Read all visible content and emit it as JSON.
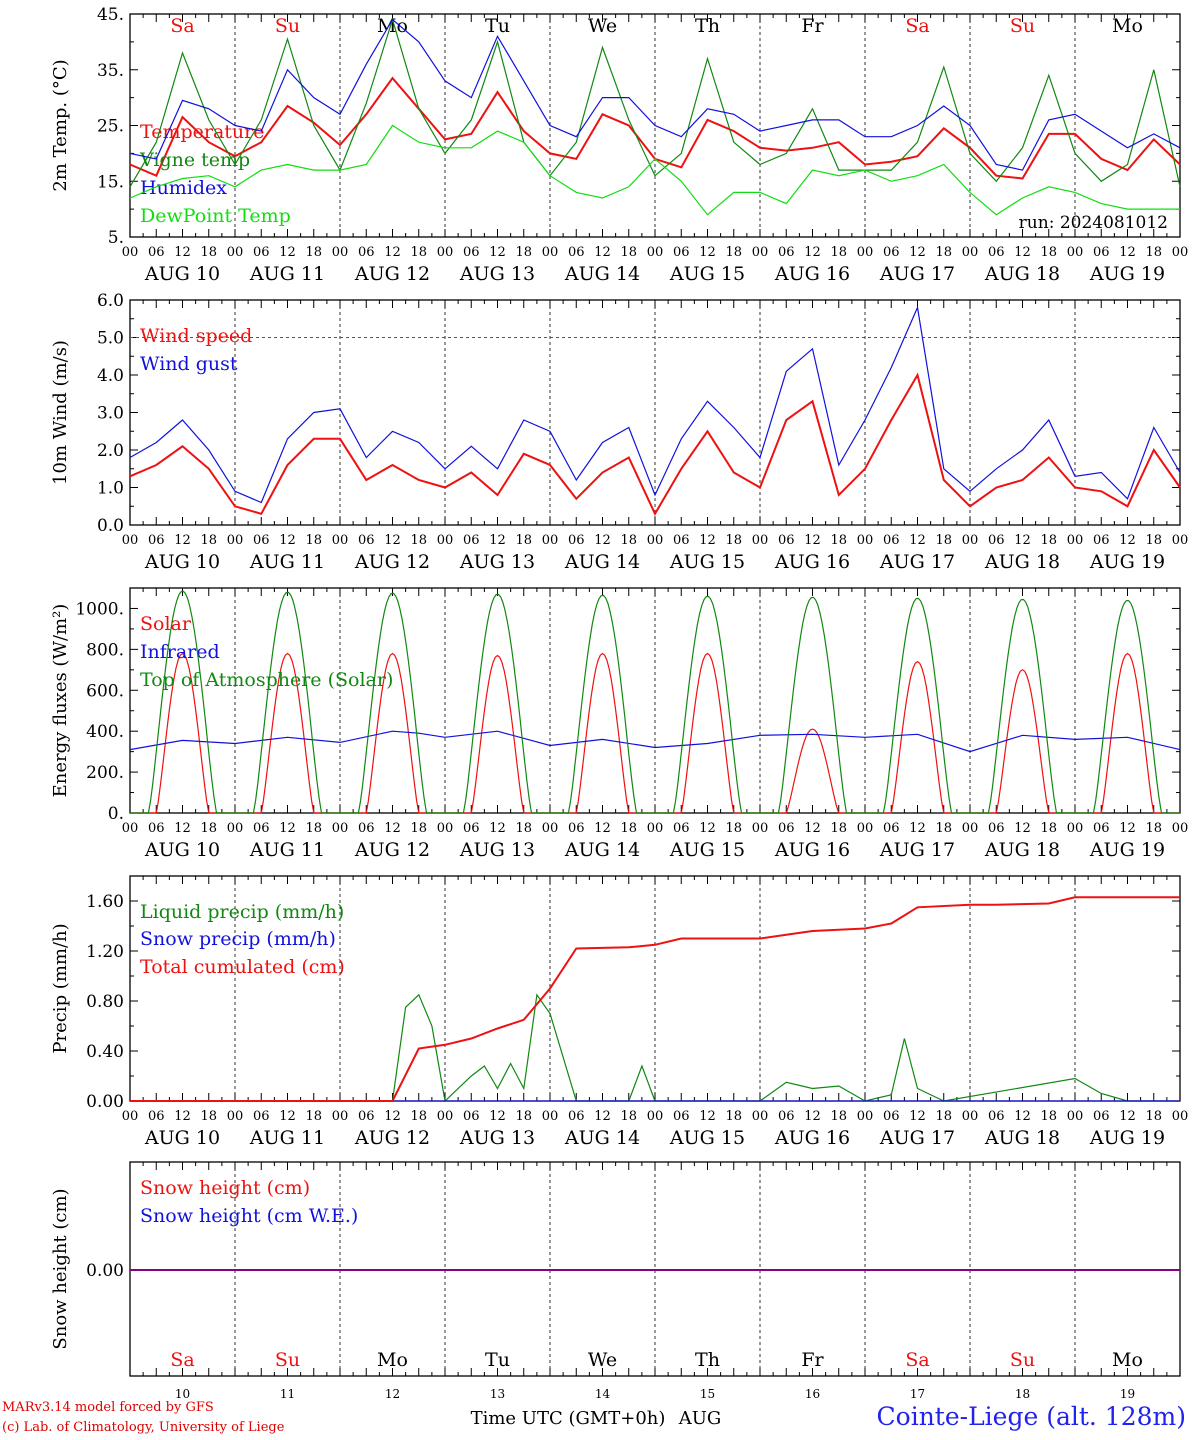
{
  "footer": {
    "credit_model": "MARv3.14 model forced by GFS",
    "credit_lab": "(c) Lab. of Climatology, University of Liege",
    "station": "Cointe-Liege (alt. 128m)",
    "time_label": "Time UTC (GMT+0h)",
    "month_label": "AUG"
  },
  "days": {
    "weekday_labels": [
      "Sa",
      "Su",
      "Mo",
      "Tu",
      "We",
      "Th",
      "Fr",
      "Sa",
      "Su",
      "Mo"
    ],
    "weekend_flags": [
      true,
      true,
      false,
      false,
      false,
      false,
      false,
      true,
      true,
      false
    ],
    "date_labels": [
      "AUG 10",
      "AUG 11",
      "AUG 12",
      "AUG 13",
      "AUG 14",
      "AUG 15",
      "AUG 16",
      "AUG 17",
      "AUG 18",
      "AUG 19"
    ],
    "day_numbers": [
      "10",
      "11",
      "12",
      "13",
      "14",
      "15",
      "16",
      "17",
      "18",
      "19"
    ],
    "hour_ticks": [
      "00",
      "06",
      "12",
      "18"
    ],
    "last_tick": "00"
  },
  "colors": {
    "red": "#ee1111",
    "green": "#118811",
    "blue": "#1111dd",
    "light_green": "#11dd11",
    "purple": "#880088"
  },
  "chart_data": [
    {
      "type": "line",
      "panel": "temperature",
      "ylabel": "2m Temp. (°C)",
      "ylim": [
        5,
        45
      ],
      "yticks": [
        "5.",
        "15.",
        "25.",
        "35.",
        "45."
      ],
      "annotation": "run: 2024081012",
      "x_unit": "hours since AUG 10 00 UTC",
      "series": [
        {
          "name": "Temperature",
          "color": "red",
          "x": [
            0,
            6,
            12,
            18,
            24,
            30,
            36,
            42,
            48,
            54,
            60,
            66,
            72,
            78,
            84,
            90,
            96,
            102,
            108,
            114,
            120,
            126,
            132,
            138,
            144,
            150,
            156,
            162,
            168,
            174,
            180,
            186,
            192,
            198,
            204,
            210,
            216,
            222,
            228,
            234,
            240
          ],
          "y": [
            18,
            16,
            26.5,
            22,
            19.5,
            22,
            28.5,
            25.5,
            21.5,
            27,
            33.5,
            28,
            22.5,
            23.5,
            31,
            24,
            20,
            19,
            27,
            25,
            19,
            17.5,
            26,
            24,
            21,
            20.5,
            21,
            22,
            18,
            18.5,
            19.5,
            24.5,
            21,
            16,
            15.5,
            23.5,
            23.5,
            19,
            17,
            22.5,
            18
          ]
        },
        {
          "name": "Vigne temp",
          "color": "green",
          "x": [
            0,
            6,
            12,
            18,
            24,
            30,
            36,
            42,
            48,
            54,
            60,
            66,
            72,
            78,
            84,
            90,
            96,
            102,
            108,
            114,
            120,
            126,
            132,
            138,
            144,
            150,
            156,
            162,
            168,
            174,
            180,
            186,
            192,
            198,
            204,
            210,
            216,
            222,
            228,
            234,
            240
          ],
          "y": [
            14,
            22,
            38,
            26,
            18,
            26,
            40.5,
            25,
            17,
            29,
            44,
            28,
            20,
            26,
            40,
            22,
            16,
            22,
            39,
            26,
            16,
            20,
            37,
            22,
            18,
            20,
            28,
            17,
            17,
            17,
            22,
            35.5,
            20,
            15,
            21,
            34,
            20,
            15,
            18,
            35,
            14
          ]
        },
        {
          "name": "Humidex",
          "color": "blue",
          "x": [
            0,
            6,
            12,
            18,
            24,
            30,
            36,
            42,
            48,
            54,
            60,
            66,
            72,
            78,
            84,
            90,
            96,
            102,
            108,
            114,
            120,
            126,
            132,
            138,
            144,
            150,
            156,
            162,
            168,
            174,
            180,
            186,
            192,
            198,
            204,
            210,
            216,
            222,
            228,
            234,
            240
          ],
          "y": [
            20,
            19,
            29.5,
            28,
            25,
            24,
            35,
            30,
            27,
            36,
            44,
            40,
            33,
            30,
            41,
            33,
            25,
            23,
            30,
            30,
            25,
            23,
            28,
            27,
            24,
            25,
            26,
            26,
            23,
            23,
            25,
            28.5,
            25,
            18,
            17,
            26,
            27,
            24,
            21,
            23.5,
            21
          ]
        },
        {
          "name": "DewPoint Temp",
          "color": "light_green",
          "x": [
            0,
            6,
            12,
            18,
            24,
            30,
            36,
            42,
            48,
            54,
            60,
            66,
            72,
            78,
            84,
            90,
            96,
            102,
            108,
            114,
            120,
            126,
            132,
            138,
            144,
            150,
            156,
            162,
            168,
            174,
            180,
            186,
            192,
            198,
            204,
            210,
            216,
            222,
            228,
            234,
            240
          ],
          "y": [
            12,
            14,
            15.5,
            16,
            14,
            17,
            18,
            17,
            17,
            18,
            25,
            22,
            21,
            21,
            24,
            22,
            16,
            13,
            12,
            14,
            19,
            15,
            9,
            13,
            13,
            11,
            17,
            16,
            17,
            15,
            16,
            18,
            13,
            9,
            12,
            14,
            13,
            11,
            10,
            10,
            10
          ]
        }
      ]
    },
    {
      "type": "line",
      "panel": "wind",
      "ylabel": "10m Wind (m/s)",
      "ylim": [
        0,
        6
      ],
      "yticks": [
        "0.0",
        "1.0",
        "2.0",
        "3.0",
        "4.0",
        "5.0",
        "6.0"
      ],
      "x_unit": "hours since AUG 10 00 UTC",
      "series": [
        {
          "name": "Wind speed",
          "color": "red",
          "x": [
            0,
            6,
            12,
            18,
            24,
            30,
            36,
            42,
            48,
            54,
            60,
            66,
            72,
            78,
            84,
            90,
            96,
            102,
            108,
            114,
            120,
            126,
            132,
            138,
            144,
            150,
            156,
            162,
            168,
            174,
            180,
            186,
            192,
            198,
            204,
            210,
            216,
            222,
            228,
            234,
            240
          ],
          "y": [
            1.3,
            1.6,
            2.1,
            1.5,
            0.5,
            0.3,
            1.6,
            2.3,
            2.3,
            1.2,
            1.6,
            1.2,
            1.0,
            1.4,
            0.8,
            1.9,
            1.6,
            0.7,
            1.4,
            1.8,
            0.3,
            1.5,
            2.5,
            1.4,
            1.0,
            2.8,
            3.3,
            0.8,
            1.5,
            2.8,
            4.0,
            1.2,
            0.5,
            1.0,
            1.2,
            1.8,
            1.0,
            0.9,
            0.5,
            2.0,
            1.0
          ]
        },
        {
          "name": "Wind gust",
          "color": "blue",
          "x": [
            0,
            6,
            12,
            18,
            24,
            30,
            36,
            42,
            48,
            54,
            60,
            66,
            72,
            78,
            84,
            90,
            96,
            102,
            108,
            114,
            120,
            126,
            132,
            138,
            144,
            150,
            156,
            162,
            168,
            174,
            180,
            186,
            192,
            198,
            204,
            210,
            216,
            222,
            228,
            234,
            240
          ],
          "y": [
            1.8,
            2.2,
            2.8,
            2.0,
            0.9,
            0.6,
            2.3,
            3.0,
            3.1,
            1.8,
            2.5,
            2.2,
            1.5,
            2.1,
            1.5,
            2.8,
            2.5,
            1.2,
            2.2,
            2.6,
            0.8,
            2.3,
            3.3,
            2.6,
            1.8,
            4.1,
            4.7,
            1.6,
            2.8,
            4.2,
            5.8,
            1.5,
            0.9,
            1.5,
            2.0,
            2.8,
            1.3,
            1.4,
            0.7,
            2.6,
            1.4
          ]
        }
      ]
    },
    {
      "type": "line",
      "panel": "energy",
      "ylabel": "Energy fluxes (W/m²)",
      "ylim": [
        0,
        1100
      ],
      "yticks": [
        "0.",
        "200.",
        "400.",
        "600.",
        "800.",
        "1000."
      ],
      "x_unit": "hours since AUG 10 00 UTC",
      "series": [
        {
          "name": "Solar",
          "color": "red",
          "daily_peak": [
            780,
            780,
            780,
            770,
            780,
            780,
            410,
            740,
            700,
            780
          ]
        },
        {
          "name": "Infrared",
          "color": "blue",
          "x": [
            0,
            12,
            24,
            36,
            48,
            60,
            66,
            72,
            84,
            96,
            108,
            120,
            132,
            144,
            156,
            168,
            180,
            192,
            204,
            216,
            228,
            240
          ],
          "y": [
            310,
            355,
            340,
            370,
            345,
            400,
            390,
            370,
            400,
            330,
            360,
            320,
            340,
            380,
            385,
            370,
            385,
            300,
            380,
            360,
            370,
            310
          ]
        },
        {
          "name": "Top of Atmosphere (Solar)",
          "color": "green",
          "daily_peak": [
            1085,
            1080,
            1075,
            1070,
            1065,
            1060,
            1055,
            1050,
            1045,
            1040
          ]
        }
      ]
    },
    {
      "type": "line",
      "panel": "precip",
      "ylabel": "Precip (mm/h)",
      "ylim": [
        0,
        1.8
      ],
      "yticks": [
        "0.00",
        "0.40",
        "0.80",
        "1.20",
        "1.60"
      ],
      "x_unit": "hours since AUG 10 00 UTC",
      "series": [
        {
          "name": "Liquid precip (mm/h)",
          "color": "green",
          "x": [
            0,
            60,
            63,
            66,
            69,
            72,
            78,
            81,
            84,
            87,
            90,
            93,
            96,
            102,
            114,
            117,
            120,
            144,
            150,
            156,
            162,
            168,
            174,
            177,
            180,
            186,
            216,
            222,
            228,
            240
          ],
          "y": [
            0,
            0,
            0.75,
            0.85,
            0.6,
            0,
            0.2,
            0.28,
            0.1,
            0.3,
            0.1,
            0.85,
            0.7,
            0,
            0,
            0.28,
            0,
            0,
            0.15,
            0.1,
            0.12,
            0,
            0.05,
            0.5,
            0.1,
            0,
            0.18,
            0.06,
            0,
            0
          ]
        },
        {
          "name": "Snow precip (mm/h)",
          "color": "blue",
          "x": [
            0,
            240
          ],
          "y": [
            0,
            0
          ]
        },
        {
          "name": "Total cumulated (cm)",
          "color": "red",
          "x": [
            0,
            60,
            66,
            72,
            78,
            84,
            90,
            96,
            102,
            114,
            120,
            126,
            144,
            150,
            156,
            168,
            174,
            180,
            192,
            198,
            210,
            216,
            240
          ],
          "y": [
            0,
            0,
            0.42,
            0.45,
            0.5,
            0.58,
            0.65,
            0.9,
            1.22,
            1.23,
            1.25,
            1.3,
            1.3,
            1.33,
            1.36,
            1.38,
            1.42,
            1.55,
            1.57,
            1.57,
            1.58,
            1.63,
            1.63
          ]
        }
      ]
    },
    {
      "type": "line",
      "panel": "snow",
      "ylabel": "Snow height (cm)",
      "yticks": [
        "0.00"
      ],
      "x_unit": "hours since AUG 10 00 UTC",
      "series": [
        {
          "name": "Snow height (cm)",
          "color": "red",
          "x": [
            0,
            240
          ],
          "y": [
            0,
            0
          ]
        },
        {
          "name": "Snow height (cm W.E.)",
          "color": "blue",
          "x": [
            0,
            240
          ],
          "y": [
            0,
            0
          ]
        }
      ]
    }
  ]
}
